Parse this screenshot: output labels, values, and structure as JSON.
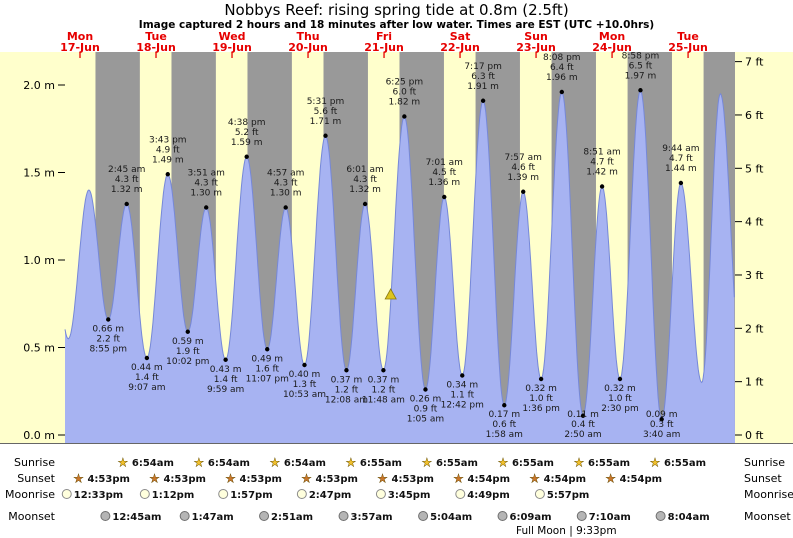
{
  "chart_data": {
    "type": "area",
    "title": "Nobbys Reef: rising  spring tide at 0.8m (2.5ft)",
    "subtitle": "Image captured 2 hours and 18 minutes after low water. Times are EST (UTC +10.0hrs)",
    "y_left_axis": {
      "unit": "m",
      "tick_labels": [
        "2.0 m",
        "1.5 m",
        "1.0 m",
        "0.5 m",
        "0.0 m"
      ]
    },
    "y_right_axis": {
      "unit": "ft",
      "tick_labels": [
        "7 ft",
        "6 ft",
        "5 ft",
        "4 ft",
        "3 ft",
        "2 ft",
        "1 ft",
        "0 ft"
      ]
    },
    "days": [
      {
        "name": "Mon",
        "date": "17-Jun"
      },
      {
        "name": "Tue",
        "date": "18-Jun"
      },
      {
        "name": "Wed",
        "date": "19-Jun"
      },
      {
        "name": "Thu",
        "date": "20-Jun"
      },
      {
        "name": "Fri",
        "date": "21-Jun"
      },
      {
        "name": "Sat",
        "date": "22-Jun"
      },
      {
        "name": "Sun",
        "date": "23-Jun"
      },
      {
        "name": "Mon",
        "date": "24-Jun"
      },
      {
        "name": "Tue",
        "date": "25-Jun"
      }
    ],
    "tide_events": [
      {
        "day": 0,
        "type": "low",
        "time": "8:55 pm",
        "height_m": 0.66,
        "height_ft": 2.2
      },
      {
        "day": 1,
        "type": "high",
        "time": "2:45 am",
        "height_m": 1.32,
        "height_ft": 4.3
      },
      {
        "day": 1,
        "type": "low",
        "time": "9:07 am",
        "height_m": 0.44,
        "height_ft": 1.4
      },
      {
        "day": 1,
        "type": "high",
        "time": "3:43 pm",
        "height_m": 1.49,
        "height_ft": 4.9
      },
      {
        "day": 1,
        "type": "low",
        "time": "10:02 pm",
        "height_m": 0.59,
        "height_ft": 1.9
      },
      {
        "day": 2,
        "type": "high",
        "time": "3:51 am",
        "height_m": 1.3,
        "height_ft": 4.3
      },
      {
        "day": 2,
        "type": "low",
        "time": "9:59 am",
        "height_m": 0.43,
        "height_ft": 1.4
      },
      {
        "day": 2,
        "type": "high",
        "time": "4:38 pm",
        "height_m": 1.59,
        "height_ft": 5.2
      },
      {
        "day": 2,
        "type": "low",
        "time": "11:07 pm",
        "height_m": 0.49,
        "height_ft": 1.6
      },
      {
        "day": 3,
        "type": "high",
        "time": "4:57 am",
        "height_m": 1.3,
        "height_ft": 4.3
      },
      {
        "day": 3,
        "type": "low",
        "time": "10:53 am",
        "height_m": 0.4,
        "height_ft": 1.3
      },
      {
        "day": 3,
        "type": "high",
        "time": "5:31 pm",
        "height_m": 1.71,
        "height_ft": 5.6
      },
      {
        "day": 4,
        "type": "low",
        "time": "12:08 am",
        "height_m": 0.37,
        "height_ft": 1.2
      },
      {
        "day": 4,
        "type": "high",
        "time": "6:01 am",
        "height_m": 1.32,
        "height_ft": 4.3
      },
      {
        "day": 4,
        "type": "low",
        "time": "11:48 am",
        "height_m": 0.37,
        "height_ft": 1.2
      },
      {
        "day": 4,
        "type": "high",
        "time": "6:25 pm",
        "height_m": 1.82,
        "height_ft": 6.0
      },
      {
        "day": 5,
        "type": "low",
        "time": "1:05 am",
        "height_m": 0.26,
        "height_ft": 0.9
      },
      {
        "day": 5,
        "type": "high",
        "time": "7:01 am",
        "height_m": 1.36,
        "height_ft": 4.5
      },
      {
        "day": 5,
        "type": "low",
        "time": "12:42 pm",
        "height_m": 0.34,
        "height_ft": 1.1
      },
      {
        "day": 5,
        "type": "high",
        "time": "7:17 pm",
        "height_m": 1.91,
        "height_ft": 6.3
      },
      {
        "day": 6,
        "type": "low",
        "time": "1:58 am",
        "height_m": 0.17,
        "height_ft": 0.6
      },
      {
        "day": 6,
        "type": "high",
        "time": "7:57 am",
        "height_m": 1.39,
        "height_ft": 4.6
      },
      {
        "day": 6,
        "type": "low",
        "time": "1:36 pm",
        "height_m": 0.32,
        "height_ft": 1.0
      },
      {
        "day": 6,
        "type": "high",
        "time": "8:08 pm",
        "height_m": 1.96,
        "height_ft": 6.4
      },
      {
        "day": 7,
        "type": "low",
        "time": "2:50 am",
        "height_m": 0.11,
        "height_ft": 0.4
      },
      {
        "day": 7,
        "type": "high",
        "time": "8:51 am",
        "height_m": 1.42,
        "height_ft": 4.7
      },
      {
        "day": 7,
        "type": "low",
        "time": "2:30 pm",
        "height_m": 0.32,
        "height_ft": 1.0
      },
      {
        "day": 7,
        "type": "high",
        "time": "8:58 pm",
        "height_m": 1.97,
        "height_ft": 6.5
      },
      {
        "day": 8,
        "type": "low",
        "time": "3:40 am",
        "height_m": 0.09,
        "height_ft": 0.3
      },
      {
        "day": 8,
        "type": "high",
        "time": "9:44 am",
        "height_m": 1.44,
        "height_ft": 4.7
      }
    ],
    "current_marker": {
      "day": 4,
      "time": "2:06pm",
      "height_m": 0.8,
      "note": "rising"
    },
    "unlabeled_extremes": [
      {
        "t_hours": 2.1,
        "height_m": 1.35
      },
      {
        "t_hours": 8.3,
        "height_m": 0.55
      },
      {
        "t_hours": 14.8,
        "height_m": 1.4
      },
      {
        "t_hours": 208.3,
        "height_m": 0.3
      },
      {
        "t_hours": 214.2,
        "height_m": 1.95
      },
      {
        "t_hours": 220.8,
        "height_m": 0.4
      }
    ],
    "astro": {
      "rows": [
        {
          "key": "sunrise",
          "label": "Sunrise",
          "events": [
            {
              "day": 1,
              "time": "6:54am"
            },
            {
              "day": 2,
              "time": "6:54am"
            },
            {
              "day": 3,
              "time": "6:54am"
            },
            {
              "day": 4,
              "time": "6:55am"
            },
            {
              "day": 5,
              "time": "6:55am"
            },
            {
              "day": 6,
              "time": "6:55am"
            },
            {
              "day": 7,
              "time": "6:55am"
            },
            {
              "day": 8,
              "time": "6:55am"
            }
          ]
        },
        {
          "key": "sunset",
          "label": "Sunset",
          "events": [
            {
              "day": 0,
              "time": "4:53pm"
            },
            {
              "day": 1,
              "time": "4:53pm"
            },
            {
              "day": 2,
              "time": "4:53pm"
            },
            {
              "day": 3,
              "time": "4:53pm"
            },
            {
              "day": 4,
              "time": "4:53pm"
            },
            {
              "day": 5,
              "time": "4:54pm"
            },
            {
              "day": 6,
              "time": "4:54pm"
            },
            {
              "day": 7,
              "time": "4:54pm"
            }
          ]
        },
        {
          "key": "moonrise",
          "label": "Moonrise",
          "events": [
            {
              "day": 0,
              "time": "12:33pm"
            },
            {
              "day": 1,
              "time": "1:12pm"
            },
            {
              "day": 2,
              "time": "1:57pm"
            },
            {
              "day": 3,
              "time": "2:47pm"
            },
            {
              "day": 4,
              "time": "3:45pm"
            },
            {
              "day": 5,
              "time": "4:49pm"
            },
            {
              "day": 6,
              "time": "5:57pm"
            }
          ]
        },
        {
          "key": "moonset",
          "label": "Moonset",
          "events": [
            {
              "day": 1,
              "time": "12:45am"
            },
            {
              "day": 2,
              "time": "1:47am"
            },
            {
              "day": 3,
              "time": "2:51am"
            },
            {
              "day": 4,
              "time": "3:57am"
            },
            {
              "day": 5,
              "time": "5:04am"
            },
            {
              "day": 6,
              "time": "6:09am"
            },
            {
              "day": 7,
              "time": "7:10am"
            },
            {
              "day": 8,
              "time": "8:04am"
            }
          ]
        }
      ],
      "full_moon": {
        "label": "Full Moon | 9:33pm",
        "day": 6,
        "time": "9:33pm"
      }
    }
  },
  "colors": {
    "day_bg": "#ffffcc",
    "night_bg": "#999999",
    "tide_fill": "#a7b3f2",
    "tide_line": "#7688d8",
    "date_red": "#e60000",
    "annotation": "#1a1a1a",
    "marker": "#ddc41f",
    "marker_stroke": "#8a7a10",
    "sunrise_star": "#f2c12e",
    "sunset_star": "#c9762b",
    "moonrise_fill": "#ffffdd",
    "moonrise_stroke": "#8a8a8a",
    "moonset_fill": "#b5b5b5",
    "moonset_stroke": "#6e6e6e"
  }
}
